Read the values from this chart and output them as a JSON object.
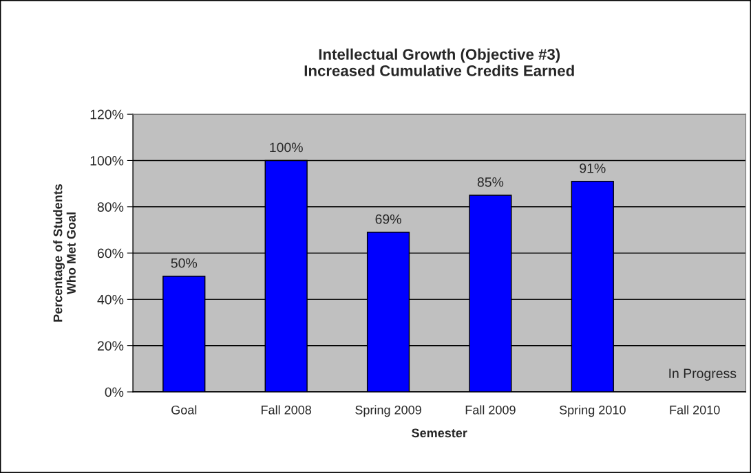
{
  "chart_data": {
    "type": "bar",
    "title": "Intellectual Growth (Objective #3)\nIncreased Cumulative Credits Earned",
    "xlabel": "Semester",
    "ylabel": "Percentage of Students\nWho Met Goal",
    "categories": [
      "Goal",
      "Fall 2008",
      "Spring 2009",
      "Fall 2009",
      "Spring 2010",
      "Fall 2010"
    ],
    "values": [
      50,
      100,
      69,
      85,
      91,
      null
    ],
    "value_labels": [
      "50%",
      "100%",
      "69%",
      "85%",
      "91%",
      null
    ],
    "color": "#0000ff",
    "ylim": [
      0,
      120
    ],
    "yticks": [
      {
        "value": 0,
        "label": "0%"
      },
      {
        "value": 20,
        "label": "20%"
      },
      {
        "value": 40,
        "label": "40%"
      },
      {
        "value": 60,
        "label": "60%"
      },
      {
        "value": 80,
        "label": "80%"
      },
      {
        "value": 100,
        "label": "100%"
      },
      {
        "value": 120,
        "label": "120%"
      }
    ],
    "grid": "y",
    "legend": false,
    "annotations": [
      "In Progress"
    ]
  }
}
